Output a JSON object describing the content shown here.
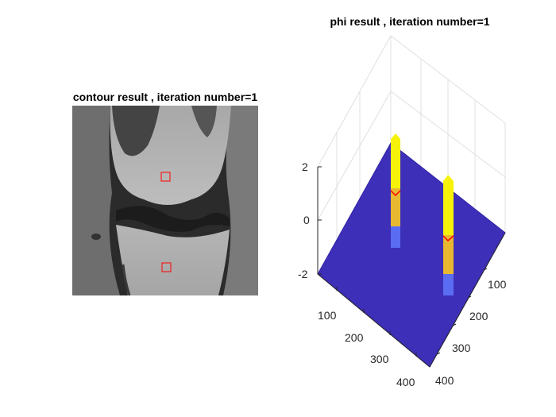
{
  "left_panel": {
    "title": "contour result , iteration number=1"
  },
  "right_panel": {
    "title": "phi result , iteration number=1",
    "z_ticks": [
      "2",
      "0",
      "-2"
    ],
    "y_ticks": [
      "100",
      "200",
      "300",
      "400"
    ],
    "x_ticks": [
      "100",
      "200",
      "300",
      "400"
    ]
  },
  "colors": {
    "surface": "#3d2fb8",
    "peak_top": "#f7f20a",
    "peak_mid": "#e8b830",
    "peak_low": "#5a6cf2",
    "contour": "#ff0000",
    "axis": "#262626",
    "grid": "#e0e0e0"
  }
}
